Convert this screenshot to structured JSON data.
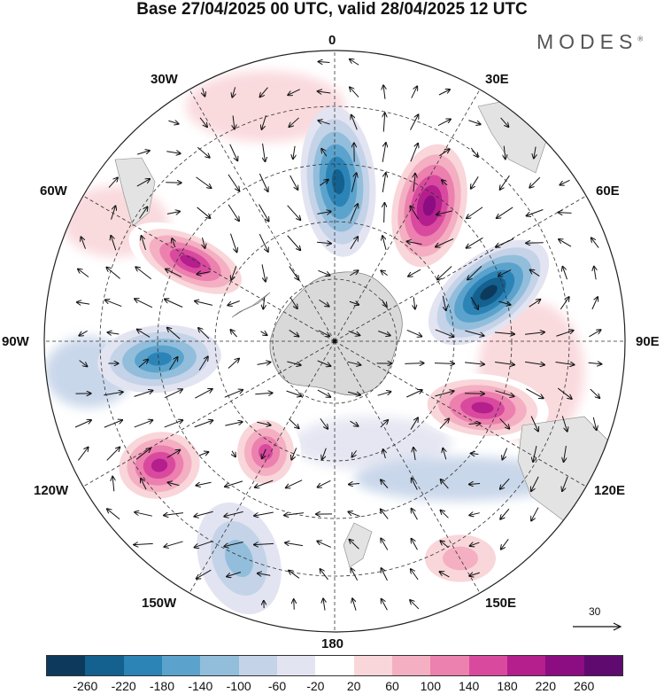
{
  "header": {
    "title": "Base 27/04/2025 00 UTC, valid 28/04/2025 12 UTC",
    "brand": "MODES"
  },
  "map": {
    "projection": "south-polar-stereographic",
    "longitude_labels": {
      "top": "0",
      "top_right": "30E",
      "right_upper": "60E",
      "right": "90E",
      "right_lower": "120E",
      "bottom_right": "150E",
      "bottom": "180",
      "bottom_left": "150W",
      "left_lower": "120W",
      "left": "90W",
      "left_upper": "60W",
      "top_left": "30W"
    },
    "reference_vector": {
      "label": "30"
    },
    "anomaly_centres": [
      {
        "sign": "negative",
        "sector": "0",
        "level": -220
      },
      {
        "sign": "positive",
        "sector": "30E",
        "level": 260
      },
      {
        "sign": "negative",
        "sector": "60E-90E",
        "level": -260
      },
      {
        "sign": "positive",
        "sector": "110E",
        "level": 220
      },
      {
        "sign": "positive",
        "sector": "60W",
        "level": 220
      },
      {
        "sign": "negative",
        "sector": "90W",
        "level": -200
      },
      {
        "sign": "positive",
        "sector": "130W",
        "level": 180
      },
      {
        "sign": "positive",
        "sector": "150W-160W",
        "level": 220
      },
      {
        "sign": "negative",
        "sector": "160W",
        "level": -120
      },
      {
        "sign": "positive",
        "sector": "150E",
        "level": 100
      }
    ]
  },
  "colorbar": {
    "ticks": [
      "-260",
      "-220",
      "-180",
      "-140",
      "-100",
      "-60",
      "-20",
      "20",
      "60",
      "100",
      "140",
      "180",
      "220",
      "260"
    ],
    "colors": [
      "#0d3a5c",
      "#14608f",
      "#2c84b6",
      "#5ba3cc",
      "#92bedc",
      "#c4d3e8",
      "#e3e4f1",
      "#ffffff",
      "#f9d6da",
      "#f4afc2",
      "#ec80ae",
      "#d94a9f",
      "#b41e8d",
      "#8c0d82",
      "#5f0a6f"
    ]
  }
}
